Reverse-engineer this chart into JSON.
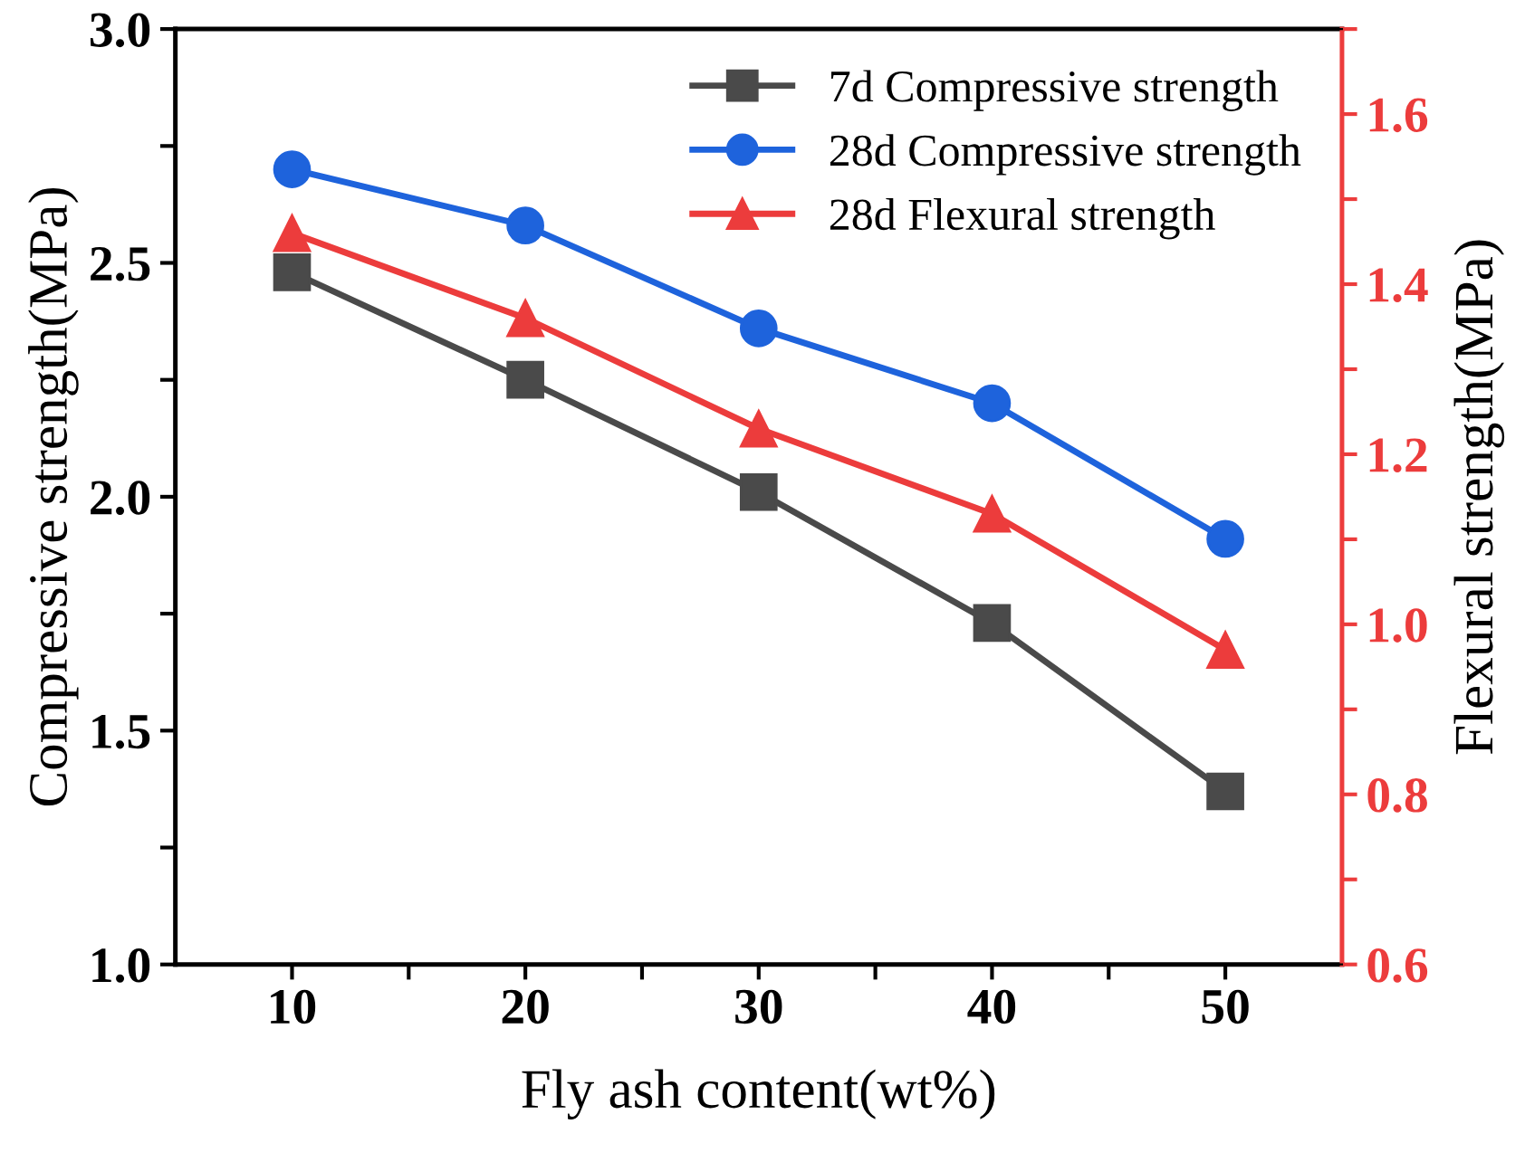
{
  "chart_data": {
    "type": "line",
    "xlabel": "Fly ash content(wt%)",
    "ylabel": "Compressive strength(MPa)",
    "y2label": "Flexural strength(MPa)",
    "x": [
      10,
      20,
      30,
      40,
      50
    ],
    "series": [
      {
        "name": "7d Compressive strength",
        "color": "#4a4a4a",
        "marker": "square",
        "values": [
          2.48,
          2.25,
          2.01,
          1.73,
          1.37
        ]
      },
      {
        "name": "28d Compressive strength",
        "color": "#1e63dc",
        "marker": "circle",
        "values": [
          2.7,
          2.58,
          2.36,
          2.2,
          1.91
        ]
      },
      {
        "name": "28d Flexural strength",
        "color": "#ec3c3c",
        "marker": "triangle",
        "axis": "y2",
        "values": [
          1.46,
          1.36,
          1.23,
          1.13,
          0.97
        ]
      }
    ],
    "xlim": [
      5,
      55
    ],
    "xticks": [
      10,
      {
        "value": 15,
        "label": null
      },
      20,
      {
        "value": 25,
        "label": null
      },
      30,
      {
        "value": 35,
        "label": null
      },
      40,
      {
        "value": 45,
        "label": null
      },
      50
    ],
    "ylim": [
      1,
      3
    ],
    "yticks": [
      {
        "value": 1,
        "label": "1.0"
      },
      {
        "value": 1.25,
        "label": null
      },
      1.5,
      {
        "value": 1.75,
        "label": null
      },
      {
        "value": 2,
        "label": "2.0"
      },
      {
        "value": 2.25,
        "label": null
      },
      2.5,
      {
        "value": 2.75,
        "label": null
      },
      {
        "value": 3,
        "label": "3.0"
      }
    ],
    "y2lim": [
      0.6,
      1.7
    ],
    "y2ticks": [
      0.6,
      {
        "value": 0.7,
        "label": null
      },
      0.8,
      {
        "value": 0.9,
        "label": null
      },
      {
        "value": 1,
        "label": "1.0"
      },
      {
        "value": 1.1,
        "label": null
      },
      1.2,
      {
        "value": 1.3,
        "label": null
      },
      1.4,
      {
        "value": 1.5,
        "label": null
      },
      1.6,
      {
        "value": 1.7,
        "label": null
      }
    ],
    "legend": "top right",
    "grid": false,
    "line_style": "solid"
  }
}
